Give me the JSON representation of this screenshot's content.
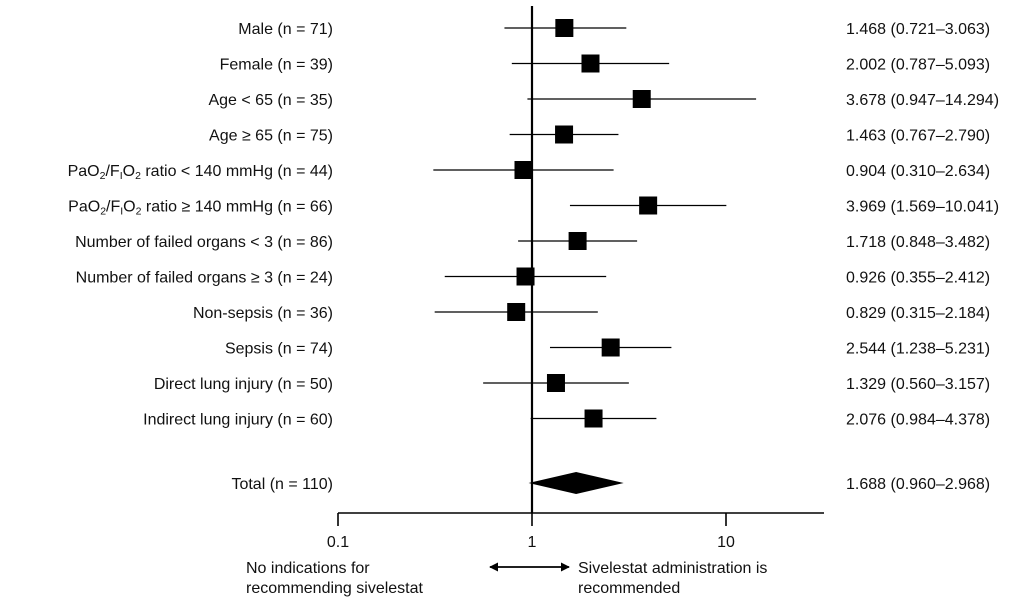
{
  "chart_data": {
    "type": "forest",
    "x_scale": "log",
    "xlim": [
      0.1,
      30
    ],
    "reference_line": 1,
    "x_ticks": [
      {
        "value": 0.1,
        "label": "0.1"
      },
      {
        "value": 1,
        "label": "1"
      },
      {
        "value": 10,
        "label": "10"
      }
    ],
    "rows": [
      {
        "label": "Male (n = 71)",
        "or": 1.468,
        "lo": 0.721,
        "hi": 3.063,
        "text": "1.468 (0.721–3.063)"
      },
      {
        "label": "Female (n = 39)",
        "or": 2.002,
        "lo": 0.787,
        "hi": 5.093,
        "text": "2.002 (0.787–5.093)"
      },
      {
        "label": "Age < 65 (n = 35)",
        "or": 3.678,
        "lo": 0.947,
        "hi": 14.294,
        "text": "3.678 (0.947–14.294)"
      },
      {
        "label": "Age ≥ 65 (n = 75)",
        "or": 1.463,
        "lo": 0.767,
        "hi": 2.79,
        "text": "1.463 (0.767–2.790)"
      },
      {
        "label": "PaO2/FIO2 ratio < 140 mmHg (n = 44)",
        "or": 0.904,
        "lo": 0.31,
        "hi": 2.634,
        "text": "0.904 (0.310–2.634)"
      },
      {
        "label": "PaO2/FIO2 ratio ≥ 140 mmHg (n = 66)",
        "or": 3.969,
        "lo": 1.569,
        "hi": 10.041,
        "text": "3.969 (1.569–10.041)"
      },
      {
        "label": "Number of failed organs < 3 (n = 86)",
        "or": 1.718,
        "lo": 0.848,
        "hi": 3.482,
        "text": "1.718 (0.848–3.482)"
      },
      {
        "label": "Number of failed organs ≥ 3 (n = 24)",
        "or": 0.926,
        "lo": 0.355,
        "hi": 2.412,
        "text": "0.926 (0.355–2.412)"
      },
      {
        "label": "Non-sepsis (n = 36)",
        "or": 0.829,
        "lo": 0.315,
        "hi": 2.184,
        "text": "0.829 (0.315–2.184)"
      },
      {
        "label": "Sepsis (n = 74)",
        "or": 2.544,
        "lo": 1.238,
        "hi": 5.231,
        "text": "2.544 (1.238–5.231)"
      },
      {
        "label": "Direct lung injury (n = 50)",
        "or": 1.329,
        "lo": 0.56,
        "hi": 3.157,
        "text": "1.329 (0.560–3.157)"
      },
      {
        "label": "Indirect lung injury (n = 60)",
        "or": 2.076,
        "lo": 0.984,
        "hi": 4.378,
        "text": "2.076 (0.984–4.378)"
      }
    ],
    "total": {
      "label": "Total  (n = 110)",
      "or": 1.688,
      "lo": 0.96,
      "hi": 2.968,
      "text": "1.688 (0.960–2.968)"
    },
    "annotations": {
      "left": [
        "No indications for",
        "recommending sivelestat"
      ],
      "right": [
        "Sivelestat administration is",
        "recommended"
      ]
    }
  }
}
